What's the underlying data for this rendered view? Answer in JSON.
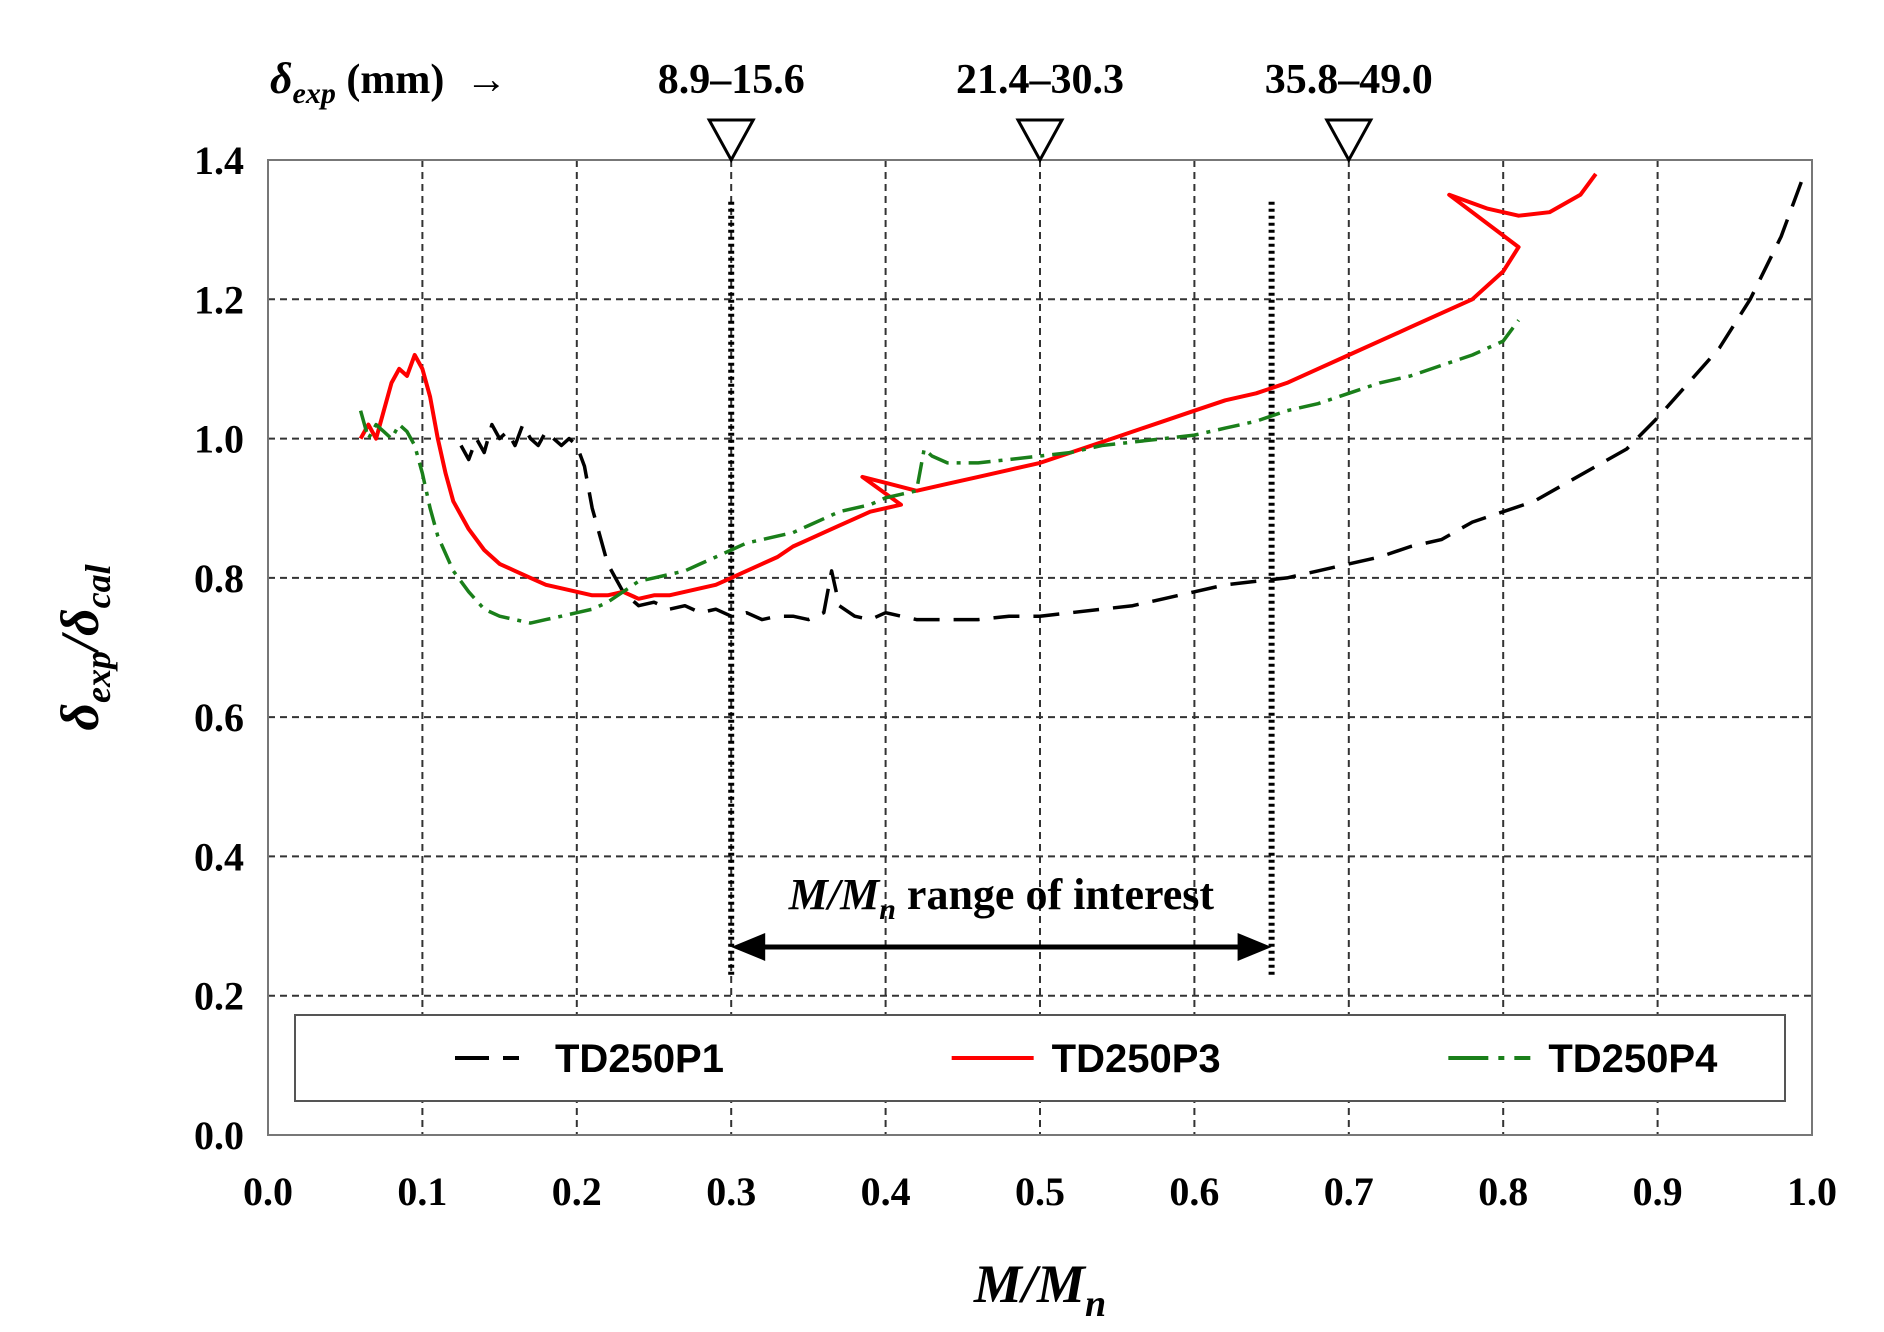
{
  "chart_data": {
    "type": "line",
    "title": "",
    "xlabel_main": "M/M",
    "xlabel_sub": "n",
    "ylabel_num_main": "δ",
    "ylabel_num_sub": "exp",
    "ylabel_den_main": "/δ",
    "ylabel_den_sub": "cal",
    "xlim": [
      0.0,
      1.0
    ],
    "ylim": [
      0.0,
      1.4
    ],
    "x_ticks": [
      "0.0",
      "0.1",
      "0.2",
      "0.3",
      "0.4",
      "0.5",
      "0.6",
      "0.7",
      "0.8",
      "0.9",
      "1.0"
    ],
    "y_ticks": [
      "0.0",
      "0.2",
      "0.4",
      "0.6",
      "0.8",
      "1.0",
      "1.2",
      "1.4"
    ],
    "grid": true,
    "legend_position": "bottom",
    "top_axis": {
      "label_main": "δ",
      "label_sub": "exp",
      "label_unit": " (mm)  →",
      "markers": [
        {
          "x": 0.3,
          "label": "8.9–15.6"
        },
        {
          "x": 0.5,
          "label": "21.4–30.3"
        },
        {
          "x": 0.7,
          "label": "35.8–49.0"
        }
      ]
    },
    "range_of_interest": {
      "x_start": 0.3,
      "x_end": 0.65,
      "label_main": "M/M",
      "label_sub": "n",
      "label_rest": " range of interest",
      "arrow_y": 0.27
    },
    "series": [
      {
        "name": "TD250P1",
        "color": "#000000",
        "style": "dash",
        "x": [
          0.125,
          0.13,
          0.135,
          0.14,
          0.145,
          0.15,
          0.155,
          0.16,
          0.165,
          0.17,
          0.175,
          0.18,
          0.185,
          0.19,
          0.195,
          0.2,
          0.205,
          0.21,
          0.215,
          0.22,
          0.225,
          0.23,
          0.235,
          0.24,
          0.25,
          0.26,
          0.27,
          0.28,
          0.29,
          0.3,
          0.31,
          0.32,
          0.33,
          0.34,
          0.35,
          0.36,
          0.365,
          0.37,
          0.38,
          0.39,
          0.4,
          0.42,
          0.44,
          0.46,
          0.48,
          0.5,
          0.52,
          0.54,
          0.56,
          0.58,
          0.6,
          0.62,
          0.64,
          0.66,
          0.68,
          0.7,
          0.72,
          0.74,
          0.76,
          0.78,
          0.8,
          0.82,
          0.84,
          0.86,
          0.88,
          0.9,
          0.92,
          0.94,
          0.96,
          0.98,
          0.995
        ],
        "y": [
          0.99,
          0.97,
          1.0,
          0.98,
          1.02,
          1.0,
          1.01,
          0.99,
          1.02,
          1.0,
          0.99,
          1.01,
          1.0,
          0.99,
          1.0,
          0.99,
          0.96,
          0.9,
          0.86,
          0.82,
          0.8,
          0.78,
          0.77,
          0.76,
          0.765,
          0.755,
          0.76,
          0.75,
          0.755,
          0.745,
          0.75,
          0.74,
          0.745,
          0.745,
          0.74,
          0.75,
          0.81,
          0.76,
          0.745,
          0.74,
          0.75,
          0.74,
          0.74,
          0.74,
          0.745,
          0.745,
          0.75,
          0.755,
          0.76,
          0.77,
          0.78,
          0.79,
          0.795,
          0.8,
          0.81,
          0.82,
          0.83,
          0.845,
          0.855,
          0.88,
          0.895,
          0.91,
          0.935,
          0.96,
          0.985,
          1.03,
          1.08,
          1.13,
          1.2,
          1.29,
          1.38
        ]
      },
      {
        "name": "TD250P3",
        "color": "#ff0000",
        "style": "solid",
        "x": [
          0.06,
          0.065,
          0.07,
          0.075,
          0.08,
          0.085,
          0.09,
          0.095,
          0.1,
          0.105,
          0.11,
          0.115,
          0.12,
          0.13,
          0.14,
          0.15,
          0.16,
          0.17,
          0.18,
          0.19,
          0.2,
          0.21,
          0.22,
          0.23,
          0.24,
          0.25,
          0.26,
          0.27,
          0.28,
          0.29,
          0.3,
          0.31,
          0.32,
          0.33,
          0.34,
          0.35,
          0.36,
          0.37,
          0.38,
          0.39,
          0.4,
          0.41,
          0.385,
          0.42,
          0.44,
          0.46,
          0.48,
          0.5,
          0.52,
          0.54,
          0.56,
          0.58,
          0.6,
          0.62,
          0.64,
          0.66,
          0.68,
          0.7,
          0.72,
          0.74,
          0.76,
          0.78,
          0.8,
          0.81,
          0.765,
          0.79,
          0.81,
          0.83,
          0.85,
          0.86
        ],
        "y": [
          1.0,
          1.02,
          1.0,
          1.04,
          1.08,
          1.1,
          1.09,
          1.12,
          1.1,
          1.06,
          1.0,
          0.95,
          0.91,
          0.87,
          0.84,
          0.82,
          0.81,
          0.8,
          0.79,
          0.785,
          0.78,
          0.775,
          0.775,
          0.78,
          0.77,
          0.775,
          0.775,
          0.78,
          0.785,
          0.79,
          0.8,
          0.81,
          0.82,
          0.83,
          0.845,
          0.855,
          0.865,
          0.875,
          0.885,
          0.895,
          0.9,
          0.905,
          0.945,
          0.925,
          0.935,
          0.945,
          0.955,
          0.965,
          0.98,
          0.995,
          1.01,
          1.025,
          1.04,
          1.055,
          1.065,
          1.08,
          1.1,
          1.12,
          1.14,
          1.16,
          1.18,
          1.2,
          1.24,
          1.275,
          1.35,
          1.33,
          1.32,
          1.325,
          1.35,
          1.38
        ]
      },
      {
        "name": "TD250P4",
        "color": "#1a7f1a",
        "style": "dashdot",
        "x": [
          0.06,
          0.065,
          0.07,
          0.075,
          0.08,
          0.085,
          0.09,
          0.095,
          0.1,
          0.105,
          0.11,
          0.12,
          0.13,
          0.14,
          0.15,
          0.16,
          0.17,
          0.18,
          0.19,
          0.2,
          0.21,
          0.22,
          0.23,
          0.24,
          0.25,
          0.26,
          0.27,
          0.28,
          0.29,
          0.3,
          0.31,
          0.32,
          0.33,
          0.34,
          0.35,
          0.36,
          0.37,
          0.38,
          0.39,
          0.4,
          0.41,
          0.42,
          0.425,
          0.43,
          0.44,
          0.46,
          0.48,
          0.5,
          0.52,
          0.54,
          0.56,
          0.58,
          0.6,
          0.62,
          0.64,
          0.66,
          0.68,
          0.7,
          0.72,
          0.74,
          0.76,
          0.78,
          0.8,
          0.81
        ],
        "y": [
          1.04,
          1.0,
          1.02,
          1.01,
          1.0,
          1.02,
          1.01,
          0.99,
          0.95,
          0.9,
          0.86,
          0.81,
          0.78,
          0.755,
          0.745,
          0.74,
          0.735,
          0.74,
          0.745,
          0.75,
          0.755,
          0.765,
          0.78,
          0.795,
          0.8,
          0.805,
          0.81,
          0.82,
          0.83,
          0.84,
          0.85,
          0.855,
          0.86,
          0.865,
          0.875,
          0.885,
          0.895,
          0.9,
          0.905,
          0.915,
          0.92,
          0.925,
          0.985,
          0.975,
          0.965,
          0.965,
          0.97,
          0.975,
          0.98,
          0.99,
          0.995,
          1.0,
          1.005,
          1.015,
          1.025,
          1.04,
          1.05,
          1.065,
          1.08,
          1.09,
          1.105,
          1.12,
          1.14,
          1.17
        ]
      }
    ]
  }
}
